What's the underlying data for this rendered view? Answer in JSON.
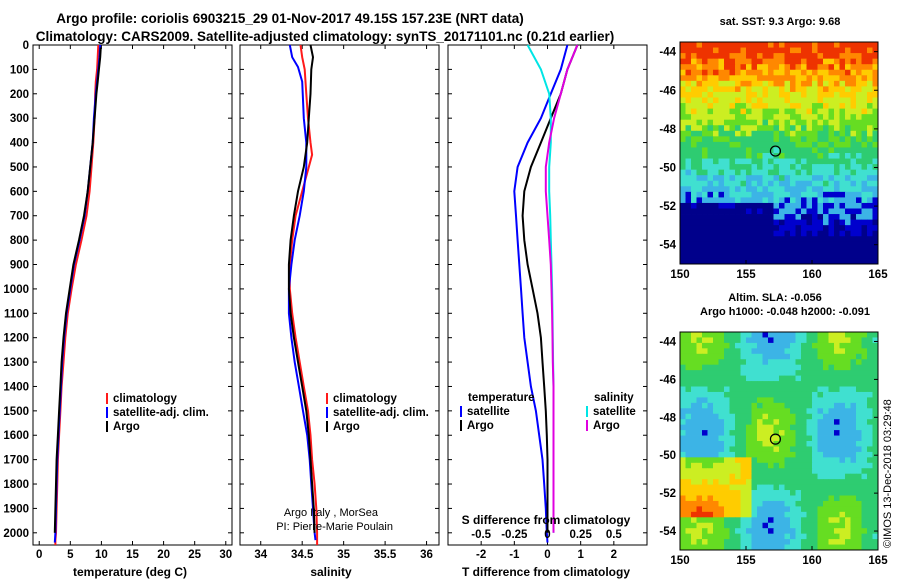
{
  "title": {
    "line1": "Argo profile: coriolis 6903215_29 01-Nov-2017 49.15S 157.23E (NRT data)",
    "line2": "Climatology: CARS2009. Satellite-adjusted climatology: synTS_20171101.nc (0.21d earlier)"
  },
  "colors": {
    "climatology": "#ff1a1a",
    "satellite": "#0000ff",
    "argo": "#000000",
    "sal_satellite": "#00e5e5",
    "sal_argo": "#e000e0"
  },
  "chart_data": [
    {
      "type": "line",
      "panel": "temperature",
      "xlabel": "temperature (deg C)",
      "ylim": [
        2050,
        0
      ],
      "xlim": [
        -1,
        31
      ],
      "xticks": [
        "0",
        "5",
        "10",
        "15",
        "20",
        "25",
        "30"
      ],
      "xtick_values": [
        0,
        5,
        10,
        15,
        20,
        25,
        30
      ],
      "yticks": [
        "0",
        "100",
        "200",
        "300",
        "400",
        "500",
        "600",
        "700",
        "800",
        "900",
        "1000",
        "1100",
        "1200",
        "1300",
        "1400",
        "1500",
        "1600",
        "1700",
        "1800",
        "1900",
        "2000"
      ],
      "ytick_values": [
        0,
        100,
        200,
        300,
        400,
        500,
        600,
        700,
        800,
        900,
        1000,
        1100,
        1200,
        1300,
        1400,
        1500,
        1600,
        1700,
        1800,
        1900,
        2000
      ],
      "legend": [
        "climatology",
        "satellite-adj. clim.",
        "Argo"
      ],
      "series": [
        {
          "name": "climatology",
          "color": "red",
          "x": [
            9.5,
            9.4,
            9.3,
            9.1,
            9.0,
            8.9,
            8.7,
            8.4,
            8.1,
            7.6,
            6.8,
            5.9,
            5.2,
            4.6,
            4.2,
            3.9,
            3.6,
            3.4,
            3.2,
            3.0,
            2.9,
            2.8,
            2.7,
            2.6,
            2.6
          ],
          "y": [
            0,
            50,
            100,
            150,
            200,
            300,
            400,
            500,
            600,
            700,
            800,
            900,
            1000,
            1100,
            1200,
            1300,
            1400,
            1500,
            1600,
            1700,
            1800,
            1900,
            2000,
            2030,
            2050
          ]
        },
        {
          "name": "satellite-adj. clim.",
          "color": "blue",
          "x": [
            9.8,
            9.7,
            9.5,
            9.3,
            9.1,
            8.8,
            8.6,
            8.2,
            7.8,
            7.3,
            6.5,
            5.6,
            5.0,
            4.4,
            4.0,
            3.7,
            3.5,
            3.3,
            3.1,
            2.9,
            2.8,
            2.7,
            2.6,
            2.5
          ],
          "y": [
            0,
            50,
            100,
            150,
            200,
            300,
            400,
            500,
            600,
            700,
            800,
            900,
            1000,
            1100,
            1200,
            1300,
            1400,
            1500,
            1600,
            1700,
            1800,
            1900,
            2000,
            2040
          ]
        },
        {
          "name": "Argo",
          "color": "black",
          "x": [
            9.9,
            9.8,
            9.6,
            9.4,
            9.2,
            8.9,
            8.6,
            8.2,
            7.8,
            7.2,
            6.4,
            5.5,
            4.9,
            4.3,
            3.9,
            3.6,
            3.4,
            3.2,
            3.0,
            2.8,
            2.7,
            2.6,
            2.5
          ],
          "y": [
            10,
            50,
            100,
            150,
            200,
            300,
            400,
            500,
            600,
            700,
            800,
            900,
            1000,
            1100,
            1200,
            1300,
            1400,
            1500,
            1600,
            1700,
            1800,
            1900,
            2000
          ]
        }
      ]
    },
    {
      "type": "line",
      "panel": "salinity",
      "xlabel": "salinity",
      "ylim": [
        2050,
        0
      ],
      "xlim": [
        33.75,
        36.15
      ],
      "xticks": [
        "34",
        "34.5",
        "35",
        "35.5",
        "36"
      ],
      "xtick_values": [
        34,
        34.5,
        35,
        35.5,
        36
      ],
      "legend": [
        "climatology",
        "satellite-adj. clim.",
        "Argo"
      ],
      "series": [
        {
          "name": "climatology",
          "color": "red",
          "x": [
            34.48,
            34.5,
            34.53,
            34.55,
            34.57,
            34.6,
            34.62,
            34.58,
            34.5,
            34.42,
            34.38,
            34.35,
            34.35,
            34.38,
            34.42,
            34.47,
            34.52,
            34.57,
            34.6,
            34.62,
            34.65,
            34.67,
            34.68,
            34.68
          ],
          "y": [
            0,
            50,
            100,
            200,
            300,
            400,
            450,
            500,
            600,
            700,
            800,
            900,
            1000,
            1100,
            1200,
            1300,
            1400,
            1500,
            1600,
            1700,
            1800,
            1900,
            2000,
            2050
          ]
        },
        {
          "name": "satellite-adj. clim.",
          "color": "blue",
          "x": [
            34.35,
            34.38,
            34.45,
            34.5,
            34.52,
            34.55,
            34.55,
            34.52,
            34.47,
            34.41,
            34.37,
            34.34,
            34.34,
            34.37,
            34.41,
            34.46,
            34.51,
            34.56,
            34.59,
            34.61,
            34.63,
            34.65,
            34.66
          ],
          "y": [
            0,
            50,
            90,
            150,
            300,
            400,
            500,
            600,
            700,
            800,
            900,
            1000,
            1100,
            1200,
            1300,
            1400,
            1500,
            1600,
            1700,
            1800,
            1900,
            2000,
            2030
          ]
        },
        {
          "name": "Argo",
          "color": "black",
          "x": [
            34.6,
            34.63,
            34.61,
            34.6,
            34.58,
            34.56,
            34.52,
            34.45,
            34.4,
            34.36,
            34.34,
            34.34,
            34.36,
            34.4,
            34.45,
            34.5,
            34.55,
            34.58,
            34.6,
            34.62,
            34.64,
            34.65
          ],
          "y": [
            0,
            50,
            100,
            200,
            300,
            400,
            500,
            600,
            700,
            800,
            900,
            1000,
            1100,
            1200,
            1300,
            1400,
            1500,
            1600,
            1700,
            1800,
            1900,
            2000
          ]
        }
      ]
    },
    {
      "type": "line",
      "panel": "difference",
      "xlabel": "T difference from climatology",
      "top_xlabel": "S difference from climatology",
      "ylim": [
        2050,
        0
      ],
      "xlim": [
        -3,
        3
      ],
      "xticks": [
        "-2",
        "-1",
        "0",
        "1",
        "2"
      ],
      "xtick_values": [
        -2,
        -1,
        0,
        1,
        2
      ],
      "top_xticks": [
        "-0.5",
        "-0.25",
        "0",
        "0.25",
        "0.5"
      ],
      "top_xtick_values": [
        -0.5,
        -0.25,
        0,
        0.25,
        0.5
      ],
      "legend_left_title": "temperature",
      "legend_right_title": "salinity",
      "legend_left": [
        "satellite",
        "Argo"
      ],
      "legend_right": [
        "satellite",
        "Argo"
      ],
      "series": [
        {
          "name": "temperature satellite",
          "color": "blue",
          "x": [
            0.6,
            0.4,
            0.1,
            -0.2,
            -0.6,
            -0.9,
            -1.0,
            -0.95,
            -0.9,
            -0.85,
            -0.8,
            -0.75,
            -0.7,
            -0.6,
            -0.5,
            -0.35,
            -0.25,
            -0.15,
            -0.1,
            -0.05,
            -0.02,
            0.0
          ],
          "y": [
            0,
            100,
            200,
            300,
            400,
            500,
            600,
            700,
            800,
            900,
            1000,
            1100,
            1200,
            1300,
            1400,
            1500,
            1600,
            1700,
            1800,
            1900,
            2000,
            2040
          ]
        },
        {
          "name": "temperature Argo",
          "color": "black",
          "x": [
            0.9,
            0.6,
            0.4,
            0.1,
            -0.2,
            -0.5,
            -0.7,
            -0.75,
            -0.7,
            -0.6,
            -0.45,
            -0.3,
            -0.2,
            -0.15,
            -0.1,
            -0.05,
            -0.02,
            0.0,
            0.0,
            0.0,
            0.0
          ],
          "y": [
            0,
            100,
            200,
            300,
            400,
            500,
            600,
            700,
            800,
            900,
            1000,
            1100,
            1200,
            1300,
            1400,
            1500,
            1600,
            1700,
            1800,
            1900,
            2000
          ]
        },
        {
          "name": "salinity satellite",
          "color": "cyan",
          "x": [
            -0.6,
            -0.2,
            0.05,
            0.1,
            0.1,
            0.05,
            0.05,
            0.08,
            0.1,
            0.12,
            0.14,
            0.15,
            0.16,
            0.17,
            0.18,
            0.18,
            0.18,
            0.18,
            0.18,
            0.18,
            0.18
          ],
          "y": [
            0,
            100,
            200,
            300,
            400,
            500,
            600,
            700,
            800,
            900,
            1000,
            1100,
            1200,
            1300,
            1400,
            1500,
            1600,
            1700,
            1800,
            1900,
            2000
          ]
        },
        {
          "name": "salinity Argo",
          "color": "magenta",
          "x": [
            0.9,
            0.6,
            0.4,
            0.2,
            0.05,
            -0.05,
            -0.05,
            0.0,
            0.05,
            0.1,
            0.12,
            0.14,
            0.15,
            0.16,
            0.18,
            0.18,
            0.18,
            0.18,
            0.18,
            0.18,
            0.18
          ],
          "y": [
            0,
            100,
            200,
            300,
            400,
            500,
            600,
            700,
            800,
            900,
            1000,
            1100,
            1200,
            1300,
            1400,
            1500,
            1600,
            1700,
            1800,
            1900,
            2000
          ]
        }
      ]
    },
    {
      "type": "heatmap",
      "panel": "sst_map",
      "title": "sat. SST: 9.3 Argo: 9.68",
      "xticks": [
        "150",
        "155",
        "160",
        "165"
      ],
      "xtick_values": [
        150,
        155,
        160,
        165
      ],
      "yticks": [
        "-44",
        "-46",
        "-48",
        "-50",
        "-52",
        "-54"
      ],
      "ytick_values": [
        -44,
        -46,
        -48,
        -50,
        -52,
        -54
      ],
      "xlim": [
        150,
        165
      ],
      "ylim": [
        -55,
        -43.5
      ],
      "marker": {
        "lon": 157.23,
        "lat": -49.15
      }
    },
    {
      "type": "heatmap",
      "panel": "sla_map",
      "title_line1": "Altim. SLA: -0.056",
      "title_line2": "Argo h1000: -0.048 h2000: -0.091",
      "xticks": [
        "150",
        "155",
        "160",
        "165"
      ],
      "xtick_values": [
        150,
        155,
        160,
        165
      ],
      "yticks": [
        "-44",
        "-46",
        "-48",
        "-50",
        "-52",
        "-54"
      ],
      "ytick_values": [
        -44,
        -46,
        -48,
        -50,
        -52,
        -54
      ],
      "xlim": [
        150,
        165
      ],
      "ylim": [
        -55,
        -43.5
      ],
      "marker": {
        "lon": 157.23,
        "lat": -49.15
      }
    }
  ],
  "credits": {
    "line1": "Argo Italy , MorSea",
    "line2": "PI: Pierre-Marie Poulain"
  },
  "stamp": "©IMOS 13-Dec-2018 03:29:48"
}
